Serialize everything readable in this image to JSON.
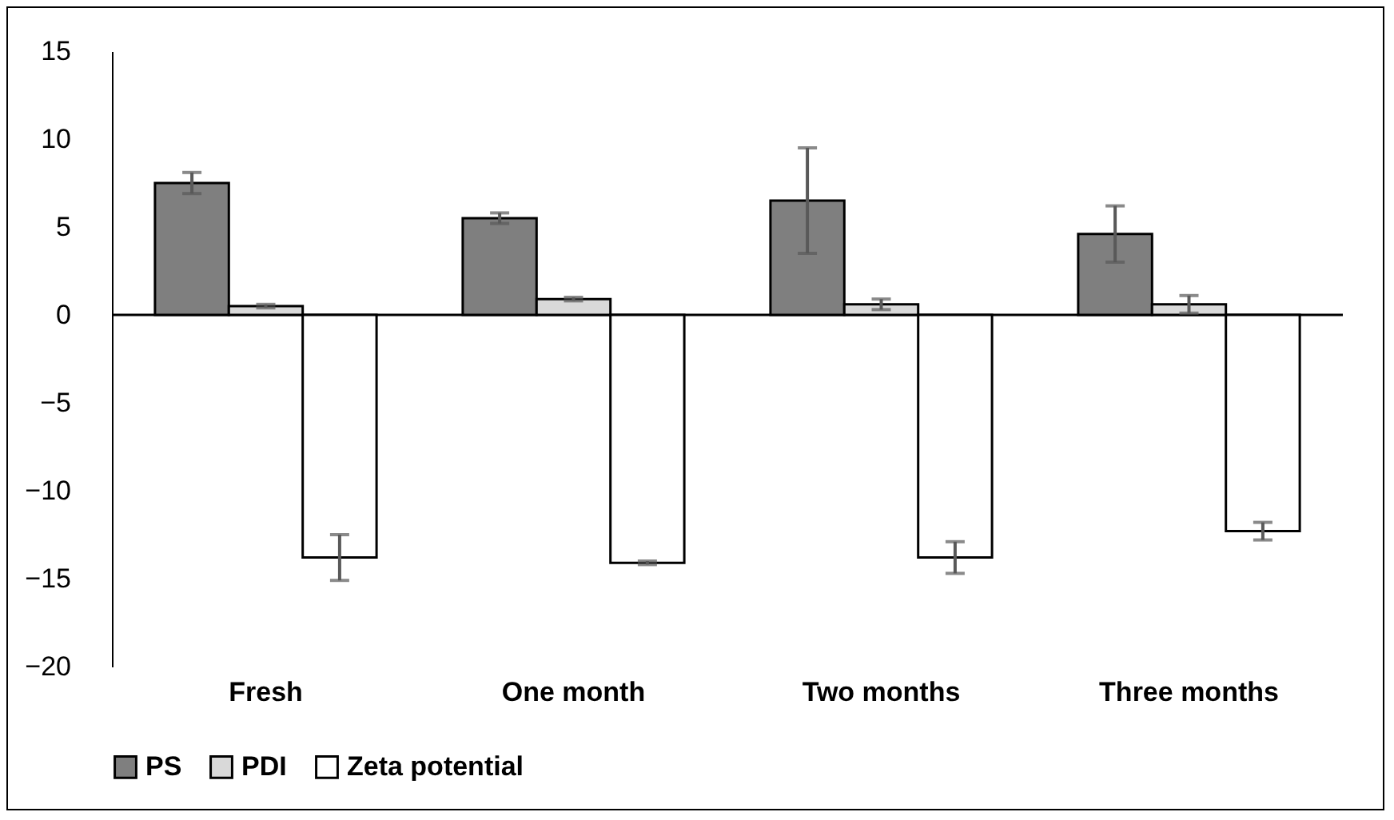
{
  "chart_data": {
    "type": "bar",
    "categories": [
      "Fresh",
      "One month",
      "Two months",
      "Three months"
    ],
    "series": [
      {
        "name": "PS",
        "color": "#7f7f7f",
        "values": [
          7.5,
          5.5,
          6.5,
          4.6
        ],
        "errors": [
          0.6,
          0.3,
          3.0,
          1.6
        ]
      },
      {
        "name": "PDI",
        "color": "#d9d9d9",
        "values": [
          0.5,
          0.9,
          0.6,
          0.6
        ],
        "errors": [
          0.1,
          0.1,
          0.3,
          0.5
        ]
      },
      {
        "name": "Zeta potential",
        "color": "#ffffff",
        "values": [
          -13.8,
          -14.1,
          -13.8,
          -12.3
        ],
        "errors": [
          1.3,
          0.1,
          0.9,
          0.5
        ]
      }
    ],
    "ylim": [
      -20,
      15
    ],
    "yticks": [
      -20,
      -15,
      -10,
      -5,
      0,
      5,
      10,
      15
    ],
    "legend": "bottom"
  }
}
